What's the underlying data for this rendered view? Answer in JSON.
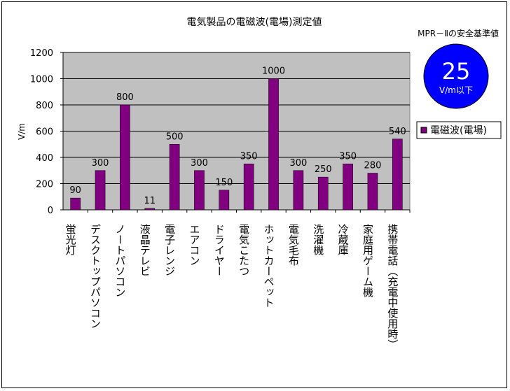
{
  "chart_data": {
    "type": "bar",
    "title": "電気製品の電磁波(電場)測定値",
    "ylabel": "V/m",
    "ylim": [
      0,
      1200
    ],
    "yticks": [
      0,
      200,
      400,
      600,
      800,
      1000,
      1200
    ],
    "grid": true,
    "legend_position": "right",
    "categories": [
      "蛍光灯",
      "デスクトップパソコン",
      "ノートパソコン",
      "液晶テレビ",
      "電子レンジ",
      "エアコン",
      "ドライヤー",
      "電気こたつ",
      "ホットカーペット",
      "電気毛布",
      "洗濯機",
      "冷蔵庫",
      "家庭用ゲーム機",
      "携帯電話（充電中使用時）"
    ],
    "series": [
      {
        "name": "電磁波(電場)",
        "color": "#800080",
        "values": [
          90,
          300,
          800,
          11,
          500,
          300,
          150,
          350,
          1000,
          300,
          250,
          350,
          280,
          540
        ]
      }
    ],
    "plot_background": "#c0c0c0",
    "annotation": {
      "heading": "MPR－Ⅱの安全基準値",
      "value": "25",
      "unit": "V/m以下",
      "circle_color": "#0000ff"
    }
  }
}
